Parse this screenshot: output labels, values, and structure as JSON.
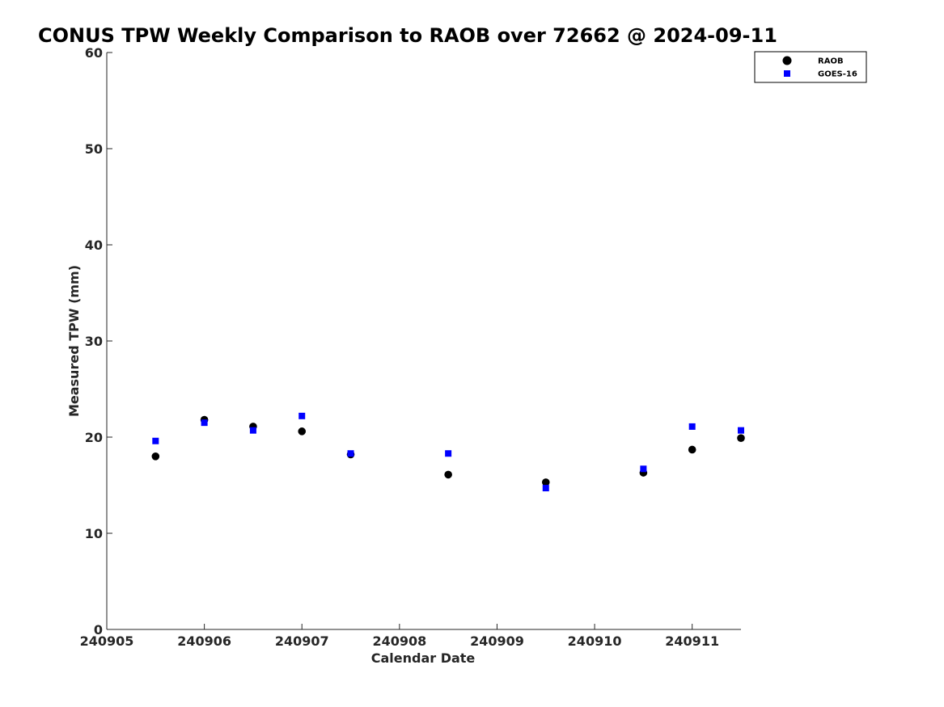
{
  "chart_data": {
    "type": "scatter",
    "title": "CONUS TPW Weekly Comparison to RAOB over 72662 @ 2024-09-11",
    "xlabel": "Calendar Date",
    "ylabel": "Measured TPW (mm)",
    "x_ticks": [
      "240905",
      "240906",
      "240907",
      "240908",
      "240909",
      "240910",
      "240911"
    ],
    "y_ticks": [
      "0",
      "10",
      "20",
      "30",
      "40",
      "50",
      "60"
    ],
    "ylim": [
      0,
      60
    ],
    "grid": false,
    "legend_position": "top-right",
    "series": [
      {
        "name": "RAOB",
        "marker": "circle",
        "color": "#000000",
        "points": [
          {
            "x": "240905 12Z",
            "y": 18.0
          },
          {
            "x": "240906 00Z",
            "y": 21.8
          },
          {
            "x": "240906 12Z",
            "y": 21.1
          },
          {
            "x": "240907 00Z",
            "y": 20.6
          },
          {
            "x": "240907 12Z",
            "y": 18.2
          },
          {
            "x": "240908 12Z",
            "y": 16.1
          },
          {
            "x": "240909 12Z",
            "y": 15.3
          },
          {
            "x": "240910 12Z",
            "y": 16.3
          },
          {
            "x": "240911 00Z",
            "y": 18.7
          },
          {
            "x": "240911 12Z",
            "y": 19.9
          }
        ]
      },
      {
        "name": "GOES-16",
        "marker": "square",
        "color": "#0000ff",
        "points": [
          {
            "x": "240905 12Z",
            "y": 19.6
          },
          {
            "x": "240906 00Z",
            "y": 21.5
          },
          {
            "x": "240906 12Z",
            "y": 20.7
          },
          {
            "x": "240907 00Z",
            "y": 22.2
          },
          {
            "x": "240907 12Z",
            "y": 18.3
          },
          {
            "x": "240908 12Z",
            "y": 18.3
          },
          {
            "x": "240909 12Z",
            "y": 14.7
          },
          {
            "x": "240910 12Z",
            "y": 16.7
          },
          {
            "x": "240911 00Z",
            "y": 21.1
          },
          {
            "x": "240911 12Z",
            "y": 20.7
          }
        ]
      }
    ]
  }
}
